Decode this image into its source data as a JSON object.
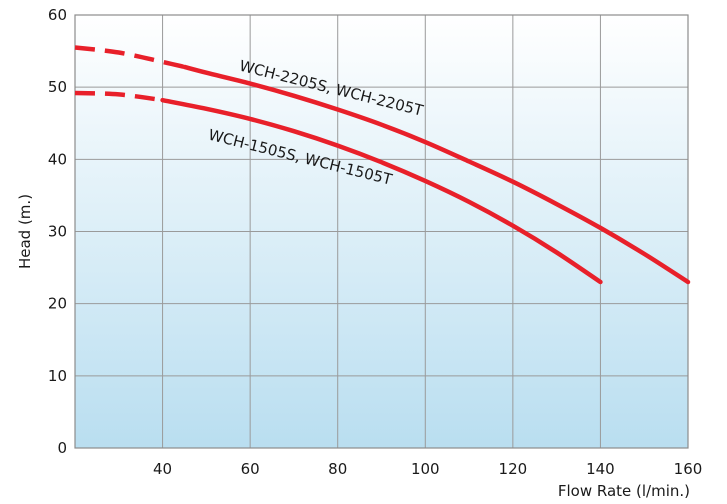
{
  "chart_data": {
    "type": "line",
    "title": "",
    "xlabel": "Flow Rate (l/min.)",
    "ylabel": "Head (m.)",
    "xlim": [
      20,
      160
    ],
    "ylim": [
      0,
      60
    ],
    "x_ticks": [
      40,
      60,
      80,
      100,
      120,
      140,
      160
    ],
    "x_tick_labels": [
      "40",
      "60",
      "80",
      "100",
      "120",
      "140",
      "160"
    ],
    "y_ticks": [
      0,
      10,
      20,
      30,
      40,
      50,
      60
    ],
    "y_tick_labels": [
      "0",
      "10",
      "20",
      "30",
      "40",
      "50",
      "60"
    ],
    "grid": true,
    "background_gradient": [
      "#ffffff",
      "#b9def0"
    ],
    "series": [
      {
        "name": "WCH-2205S, WCH-2205T",
        "color": "#e8202a",
        "dashed_until_x": 45,
        "x": [
          20,
          30,
          40,
          45,
          50,
          60,
          70,
          80,
          90,
          100,
          110,
          120,
          130,
          140,
          150,
          160
        ],
        "y": [
          55.5,
          54.8,
          53.5,
          52.8,
          52.0,
          50.5,
          48.8,
          46.9,
          44.8,
          42.4,
          39.7,
          36.9,
          33.8,
          30.5,
          26.9,
          23.0
        ]
      },
      {
        "name": "WCH-1505S, WCH-1505T",
        "color": "#e8202a",
        "dashed_until_x": 40,
        "x": [
          20,
          30,
          40,
          50,
          60,
          70,
          80,
          90,
          100,
          110,
          120,
          130,
          140
        ],
        "y": [
          49.2,
          49.0,
          48.2,
          47.0,
          45.6,
          43.9,
          41.9,
          39.6,
          37.0,
          34.1,
          30.8,
          27.1,
          23.0
        ]
      }
    ]
  }
}
